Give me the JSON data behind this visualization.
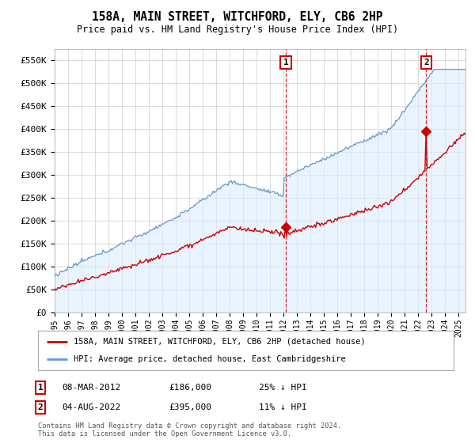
{
  "title": "158A, MAIN STREET, WITCHFORD, ELY, CB6 2HP",
  "subtitle": "Price paid vs. HM Land Registry's House Price Index (HPI)",
  "ylabel_ticks": [
    "£0",
    "£50K",
    "£100K",
    "£150K",
    "£200K",
    "£250K",
    "£300K",
    "£350K",
    "£400K",
    "£450K",
    "£500K",
    "£550K"
  ],
  "ytick_values": [
    0,
    50000,
    100000,
    150000,
    200000,
    250000,
    300000,
    350000,
    400000,
    450000,
    500000,
    550000
  ],
  "legend_red": "158A, MAIN STREET, WITCHFORD, ELY, CB6 2HP (detached house)",
  "legend_blue": "HPI: Average price, detached house, East Cambridgeshire",
  "annotation1_label": "1",
  "annotation1_date": "08-MAR-2012",
  "annotation1_price": "£186,000",
  "annotation1_hpi": "25% ↓ HPI",
  "annotation2_label": "2",
  "annotation2_date": "04-AUG-2022",
  "annotation2_price": "£395,000",
  "annotation2_hpi": "11% ↓ HPI",
  "footer": "Contains HM Land Registry data © Crown copyright and database right 2024.\nThis data is licensed under the Open Government Licence v3.0.",
  "red_color": "#cc0000",
  "blue_color": "#6699cc",
  "blue_fill_color": "#ddeeff",
  "dashed_color": "#cc0000",
  "background_color": "#ffffff",
  "grid_color": "#cccccc",
  "sale1_year": 2012.167,
  "sale1_price": 186000,
  "sale2_year": 2022.583,
  "sale2_price": 395000,
  "xmin": 1995,
  "xmax": 2025.5,
  "ymin": 0,
  "ymax": 575000
}
